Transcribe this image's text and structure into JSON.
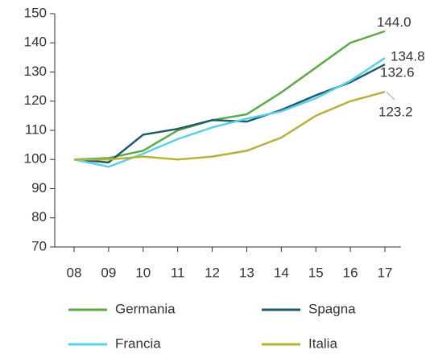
{
  "chart_data": {
    "type": "line",
    "categories": [
      "08",
      "09",
      "10",
      "11",
      "12",
      "13",
      "14",
      "15",
      "16",
      "17"
    ],
    "series": [
      {
        "name": "Germania",
        "color": "#5aaa46",
        "values": [
          100,
          100.5,
          103,
          110,
          113.5,
          115.5,
          123,
          131.5,
          140,
          144.0
        ],
        "value_labels": [
          null,
          null,
          null,
          null,
          null,
          null,
          null,
          null,
          null,
          "144.0"
        ]
      },
      {
        "name": "Spagna",
        "color": "#1d5b6b",
        "values": [
          100,
          99,
          108.5,
          110.5,
          113.5,
          113,
          117,
          122,
          126.5,
          132.6
        ],
        "value_labels": [
          null,
          null,
          null,
          null,
          null,
          null,
          null,
          null,
          null,
          "132.6"
        ]
      },
      {
        "name": "Francia",
        "color": "#5ad0e8",
        "values": [
          100,
          97.5,
          102,
          107,
          111,
          114,
          116.5,
          121,
          127,
          134.8
        ],
        "value_labels": [
          null,
          null,
          null,
          null,
          null,
          null,
          null,
          null,
          null,
          "134.8"
        ]
      },
      {
        "name": "Italia",
        "color": "#b8b03a",
        "values": [
          100,
          100,
          101,
          100,
          101,
          103,
          107.5,
          115,
          120,
          123.2
        ],
        "value_labels": [
          null,
          null,
          null,
          null,
          null,
          null,
          null,
          null,
          null,
          "123.2"
        ]
      }
    ],
    "ylim": [
      70,
      150
    ],
    "yticks": [
      70,
      80,
      90,
      100,
      110,
      120,
      130,
      140,
      150
    ]
  }
}
